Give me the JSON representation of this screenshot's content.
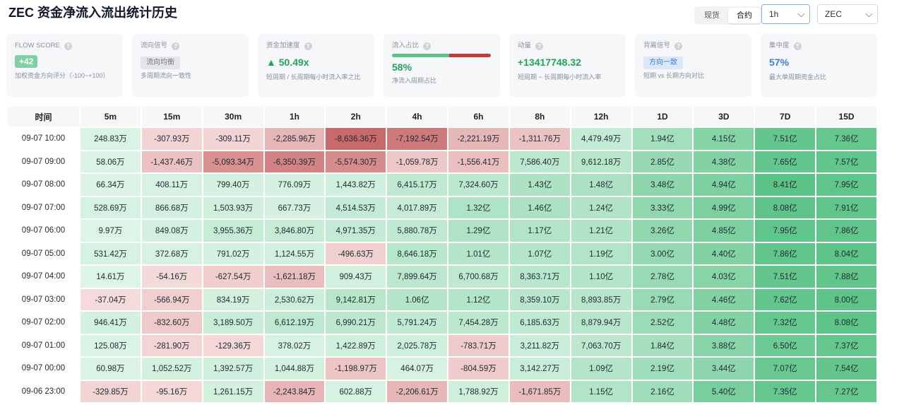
{
  "header": {
    "title": "ZEC 资金净流入流出统计历史",
    "market_options": [
      "现货",
      "合约"
    ],
    "market_active": 1,
    "interval": "1h",
    "symbol": "ZEC"
  },
  "cards": [
    {
      "label": "FLOW SCORE",
      "value": "+42",
      "value_style": "score",
      "desc": "加权资金方向评分（-100~+100）"
    },
    {
      "label": "流向信号",
      "value": "流向均衡",
      "value_style": "gray",
      "desc": "多周期流向一致性"
    },
    {
      "label": "资金加速度",
      "value": "▲ 50.49x",
      "value_style": "green",
      "desc": "短周期 / 长周期每小时流入率之比"
    },
    {
      "label": "流入占比",
      "value": "58%",
      "value_style": "green",
      "ratio": 0.58,
      "desc": "净流入周期占比"
    },
    {
      "label": "动量",
      "value": "+13417748.32",
      "value_style": "green",
      "desc": "短周期 − 长周期每小时流入率"
    },
    {
      "label": "背离信号",
      "value": "方向一致",
      "value_style": "blue-badge",
      "desc": "短期 vs 长期方向对比"
    },
    {
      "label": "集中度",
      "value": "57%",
      "value_style": "blue",
      "desc": "最大单周期资金占比"
    }
  ],
  "colors": {
    "pos_strong": "#5cc387",
    "pos_light": "#def5e8",
    "neg_strong": "#c96a6a",
    "neg_light": "#f6dcdc",
    "accent_blue": "#3b7ddd"
  },
  "table": {
    "columns": [
      "时间",
      "5m",
      "15m",
      "30m",
      "1h",
      "2h",
      "4h",
      "6h",
      "8h",
      "12h",
      "1D",
      "3D",
      "7D",
      "15D"
    ],
    "rows": [
      {
        "time": "09-07 10:00",
        "cells": [
          "248.83万",
          "-307.93万",
          "-309.11万",
          "-2,285.96万",
          "-8,636.36万",
          "-7,192.54万",
          "-2,221.19万",
          "-1,311.76万",
          "4,479.49万",
          "1.94亿",
          "4.15亿",
          "7.51亿",
          "7.36亿"
        ]
      },
      {
        "time": "09-07 09:00",
        "cells": [
          "58.06万",
          "-1,437.46万",
          "-5,093.34万",
          "-6,350.39万",
          "-5,574.30万",
          "-1,059.78万",
          "-1,556.41万",
          "7,586.40万",
          "9,612.18万",
          "2.85亿",
          "4.38亿",
          "7.65亿",
          "7.57亿"
        ]
      },
      {
        "time": "09-07 08:00",
        "cells": [
          "66.34万",
          "408.11万",
          "799.40万",
          "776.09万",
          "1,443.82万",
          "6,415.17万",
          "7,324.60万",
          "1.43亿",
          "1.48亿",
          "3.48亿",
          "4.94亿",
          "8.41亿",
          "7.95亿"
        ]
      },
      {
        "time": "09-07 07:00",
        "cells": [
          "528.69万",
          "866.68万",
          "1,503.93万",
          "667.73万",
          "4,514.53万",
          "4,017.89万",
          "1.32亿",
          "1.46亿",
          "1.24亿",
          "3.33亿",
          "4.99亿",
          "8.08亿",
          "7.91亿"
        ]
      },
      {
        "time": "09-07 06:00",
        "cells": [
          "9.97万",
          "849.08万",
          "3,955.36万",
          "3,846.80万",
          "4,971.35万",
          "5,880.78万",
          "1.29亿",
          "1.17亿",
          "1.21亿",
          "3.26亿",
          "4.85亿",
          "7.95亿",
          "7.86亿"
        ]
      },
      {
        "time": "09-07 05:00",
        "cells": [
          "531.42万",
          "372.68万",
          "791.02万",
          "1,124.55万",
          "-496.63万",
          "8,646.18万",
          "1.01亿",
          "1.07亿",
          "1.19亿",
          "3.00亿",
          "4.40亿",
          "7.86亿",
          "8.04亿"
        ]
      },
      {
        "time": "09-07 04:00",
        "cells": [
          "14.61万",
          "-54.16万",
          "-627.54万",
          "-1,621.18万",
          "909.43万",
          "7,899.64万",
          "6,700.68万",
          "8,363.71万",
          "1.10亿",
          "2.78亿",
          "4.03亿",
          "7.51亿",
          "7.88亿"
        ]
      },
      {
        "time": "09-07 03:00",
        "cells": [
          "-37.04万",
          "-566.94万",
          "834.19万",
          "2,530.62万",
          "9,142.81万",
          "1.06亿",
          "1.12亿",
          "8,359.10万",
          "8,893.85万",
          "2.79亿",
          "4.46亿",
          "7.62亿",
          "8.00亿"
        ]
      },
      {
        "time": "09-07 02:00",
        "cells": [
          "946.41万",
          "-832.60万",
          "3,189.50万",
          "6,612.19万",
          "6,990.21万",
          "5,791.24万",
          "7,454.28万",
          "6,185.63万",
          "8,879.94万",
          "2.52亿",
          "4.48亿",
          "7.32亿",
          "8.08亿"
        ]
      },
      {
        "time": "09-07 01:00",
        "cells": [
          "125.08万",
          "-281.90万",
          "-129.36万",
          "378.02万",
          "1,422.89万",
          "2,025.78万",
          "-783.71万",
          "3,211.82万",
          "7,063.70万",
          "1.84亿",
          "3.88亿",
          "6.50亿",
          "7.37亿"
        ]
      },
      {
        "time": "09-07 00:00",
        "cells": [
          "60.98万",
          "1,052.52万",
          "1,392.57万",
          "1,044.88万",
          "-1,198.97万",
          "464.07万",
          "-804.59万",
          "3,142.27万",
          "1.09亿",
          "2.19亿",
          "3.44亿",
          "7.07亿",
          "7.54亿"
        ]
      },
      {
        "time": "09-06 23:00",
        "cells": [
          "-329.85万",
          "-95.16万",
          "1,261.15万",
          "-2,243.84万",
          "602.88万",
          "-2,206.61万",
          "1,788.92万",
          "-1,671.85万",
          "1.15亿",
          "2.16亿",
          "5.40亿",
          "7.35亿",
          "7.27亿"
        ]
      }
    ]
  }
}
